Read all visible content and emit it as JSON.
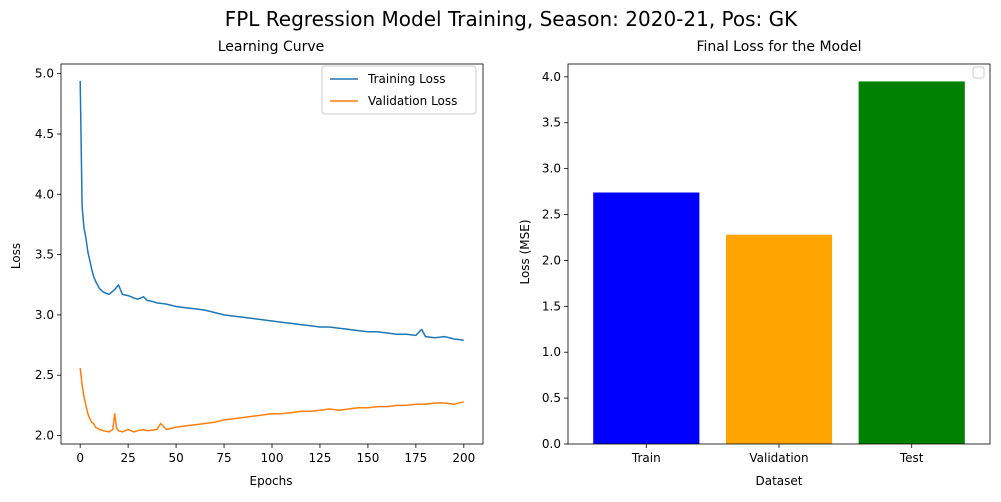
{
  "figure": {
    "suptitle": "FPL Regression Model Training, Season: 2020-21, Pos: GK"
  },
  "chart_data": [
    {
      "type": "line",
      "title": "Learning Curve",
      "xlabel": "Epochs",
      "ylabel": "Loss",
      "xlim": [
        -10,
        210
      ],
      "ylim": [
        1.93,
        5.08
      ],
      "xticks": [
        0,
        25,
        50,
        75,
        100,
        125,
        150,
        175,
        200
      ],
      "yticks": [
        2.0,
        2.5,
        3.0,
        3.5,
        4.0,
        4.5,
        5.0
      ],
      "xtick_labels": [
        "0",
        "25",
        "50",
        "75",
        "100",
        "125",
        "150",
        "175",
        "200"
      ],
      "ytick_labels": [
        "2.0",
        "2.5",
        "3.0",
        "3.5",
        "4.0",
        "4.5",
        "5.0"
      ],
      "legend": "top-right",
      "grid": false,
      "series": [
        {
          "name": "Training Loss",
          "color": "#1f77b4",
          "x": [
            0,
            1,
            2,
            3,
            4,
            5,
            6,
            7,
            8,
            10,
            12,
            15,
            18,
            20,
            22,
            25,
            28,
            30,
            33,
            35,
            38,
            40,
            45,
            50,
            55,
            60,
            65,
            70,
            75,
            80,
            85,
            90,
            95,
            100,
            105,
            110,
            115,
            120,
            125,
            130,
            135,
            140,
            145,
            150,
            155,
            160,
            165,
            170,
            175,
            178,
            180,
            185,
            190,
            195,
            200
          ],
          "values": [
            4.94,
            3.9,
            3.72,
            3.64,
            3.52,
            3.45,
            3.38,
            3.32,
            3.28,
            3.22,
            3.19,
            3.17,
            3.21,
            3.25,
            3.17,
            3.16,
            3.14,
            3.13,
            3.15,
            3.12,
            3.11,
            3.1,
            3.09,
            3.07,
            3.06,
            3.05,
            3.04,
            3.02,
            3.0,
            2.99,
            2.98,
            2.97,
            2.96,
            2.95,
            2.94,
            2.93,
            2.92,
            2.91,
            2.9,
            2.9,
            2.89,
            2.88,
            2.87,
            2.86,
            2.86,
            2.85,
            2.84,
            2.84,
            2.83,
            2.88,
            2.82,
            2.81,
            2.82,
            2.8,
            2.79
          ]
        },
        {
          "name": "Validation Loss",
          "color": "#ff7f0e",
          "x": [
            0,
            1,
            2,
            3,
            4,
            5,
            6,
            7,
            8,
            10,
            12,
            15,
            17,
            18,
            19,
            20,
            22,
            25,
            28,
            30,
            33,
            35,
            40,
            42,
            45,
            50,
            55,
            60,
            65,
            70,
            75,
            80,
            85,
            90,
            95,
            100,
            105,
            110,
            115,
            120,
            125,
            130,
            135,
            140,
            145,
            150,
            155,
            160,
            165,
            170,
            175,
            180,
            185,
            190,
            195,
            200
          ],
          "values": [
            2.56,
            2.42,
            2.32,
            2.25,
            2.18,
            2.14,
            2.11,
            2.1,
            2.07,
            2.05,
            2.04,
            2.03,
            2.05,
            2.18,
            2.06,
            2.04,
            2.03,
            2.05,
            2.03,
            2.04,
            2.05,
            2.04,
            2.05,
            2.1,
            2.05,
            2.07,
            2.08,
            2.09,
            2.1,
            2.11,
            2.13,
            2.14,
            2.15,
            2.16,
            2.17,
            2.18,
            2.18,
            2.19,
            2.2,
            2.2,
            2.21,
            2.22,
            2.21,
            2.22,
            2.23,
            2.23,
            2.24,
            2.24,
            2.25,
            2.25,
            2.26,
            2.26,
            2.27,
            2.27,
            2.26,
            2.28
          ]
        }
      ]
    },
    {
      "type": "bar",
      "title": "Final Loss for the Model",
      "xlabel": "Dataset",
      "ylabel": "Loss (MSE)",
      "ylim": [
        0,
        4.14
      ],
      "yticks": [
        0.0,
        0.5,
        1.0,
        1.5,
        2.0,
        2.5,
        3.0,
        3.5,
        4.0
      ],
      "ytick_labels": [
        "0.0",
        "0.5",
        "1.0",
        "1.5",
        "2.0",
        "2.5",
        "3.0",
        "3.5",
        "4.0"
      ],
      "categories": [
        "Train",
        "Validation",
        "Test"
      ],
      "values": [
        2.74,
        2.28,
        3.95
      ],
      "colors": [
        "#0000ff",
        "#ffa500",
        "#008000"
      ],
      "legend": "top-right (empty)",
      "grid": false
    }
  ]
}
